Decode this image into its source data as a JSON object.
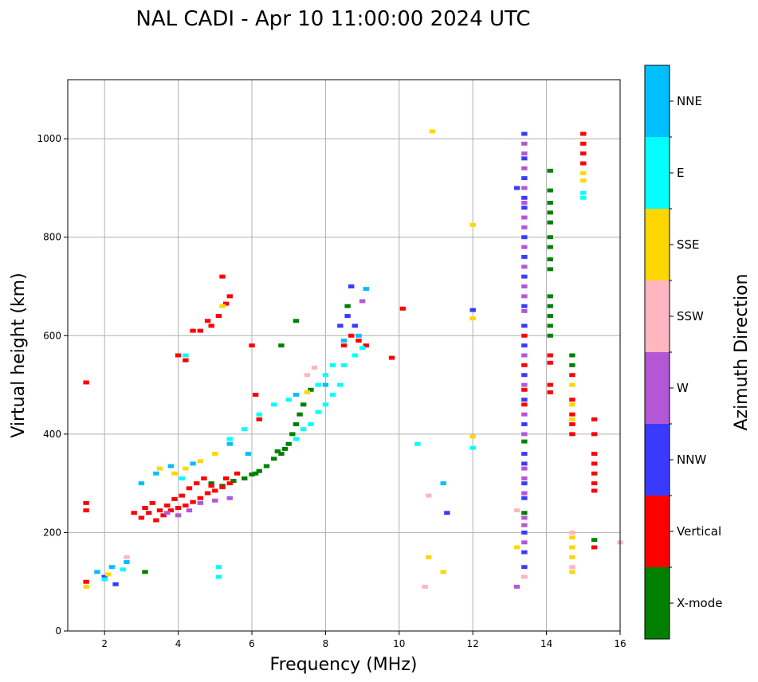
{
  "chart_data": {
    "type": "scatter",
    "title": "NAL CADI - Apr 10 11:00:00 2024 UTC",
    "xlabel": "Frequency (MHz)",
    "ylabel": "Virtual height (km)",
    "xlim": [
      1,
      16
    ],
    "ylim": [
      0,
      1120
    ],
    "xticks": [
      2,
      4,
      6,
      8,
      10,
      12,
      14,
      16
    ],
    "yticks": [
      0,
      200,
      400,
      600,
      800,
      1000
    ],
    "grid": true,
    "colorbar": {
      "label": "Azimuth Direction",
      "categories": [
        {
          "name": "X-mode",
          "color": "#008000"
        },
        {
          "name": "Vertical",
          "color": "#ff0000"
        },
        {
          "name": "NNW",
          "color": "#3a3aff"
        },
        {
          "name": "W",
          "color": "#b457d6"
        },
        {
          "name": "SSW",
          "color": "#ffb6c1"
        },
        {
          "name": "SSE",
          "color": "#ffd700"
        },
        {
          "name": "E",
          "color": "#00ffff"
        },
        {
          "name": "NNE",
          "color": "#00bfff"
        }
      ]
    },
    "series": [
      {
        "name": "X-mode",
        "points": [
          [
            4.9,
            300
          ],
          [
            5.2,
            295
          ],
          [
            5.5,
            305
          ],
          [
            5.8,
            310
          ],
          [
            6.0,
            318
          ],
          [
            6.2,
            325
          ],
          [
            6.4,
            335
          ],
          [
            6.6,
            350
          ],
          [
            6.8,
            360
          ],
          [
            7.0,
            380
          ],
          [
            7.2,
            420
          ],
          [
            7.4,
            460
          ],
          [
            7.6,
            490
          ],
          [
            6.1,
            320
          ],
          [
            6.7,
            365
          ],
          [
            6.9,
            370
          ],
          [
            7.1,
            400
          ],
          [
            7.3,
            440
          ],
          [
            6.8,
            580
          ],
          [
            7.2,
            630
          ],
          [
            8.6,
            660
          ],
          [
            3.1,
            120
          ],
          [
            14.1,
            935
          ],
          [
            14.1,
            895
          ],
          [
            14.1,
            870
          ],
          [
            14.1,
            850
          ],
          [
            14.1,
            830
          ],
          [
            14.1,
            800
          ],
          [
            14.1,
            780
          ],
          [
            14.1,
            755
          ],
          [
            14.1,
            735
          ],
          [
            14.1,
            680
          ],
          [
            14.1,
            660
          ],
          [
            14.1,
            640
          ],
          [
            14.1,
            620
          ],
          [
            14.1,
            600
          ],
          [
            13.4,
            385
          ],
          [
            13.4,
            240
          ],
          [
            14.7,
            560
          ],
          [
            14.7,
            540
          ],
          [
            15.3,
            185
          ]
        ]
      },
      {
        "name": "Vertical",
        "points": [
          [
            1.5,
            100
          ],
          [
            1.5,
            505
          ],
          [
            1.5,
            260
          ],
          [
            1.5,
            245
          ],
          [
            2.8,
            240
          ],
          [
            3.0,
            230
          ],
          [
            3.2,
            240
          ],
          [
            3.4,
            225
          ],
          [
            3.6,
            235
          ],
          [
            3.8,
            245
          ],
          [
            4.0,
            250
          ],
          [
            4.2,
            255
          ],
          [
            4.4,
            262
          ],
          [
            4.6,
            270
          ],
          [
            4.8,
            280
          ],
          [
            5.0,
            285
          ],
          [
            5.2,
            292
          ],
          [
            5.4,
            300
          ],
          [
            3.1,
            250
          ],
          [
            3.3,
            260
          ],
          [
            3.5,
            245
          ],
          [
            3.7,
            255
          ],
          [
            3.9,
            268
          ],
          [
            4.1,
            275
          ],
          [
            4.3,
            290
          ],
          [
            4.5,
            300
          ],
          [
            4.7,
            310
          ],
          [
            4.9,
            295
          ],
          [
            5.3,
            310
          ],
          [
            5.6,
            320
          ],
          [
            6.1,
            480
          ],
          [
            6.2,
            430
          ],
          [
            4.0,
            560
          ],
          [
            4.2,
            550
          ],
          [
            4.4,
            610
          ],
          [
            4.6,
            610
          ],
          [
            4.8,
            630
          ],
          [
            4.9,
            620
          ],
          [
            5.1,
            640
          ],
          [
            5.3,
            665
          ],
          [
            5.4,
            680
          ],
          [
            5.2,
            720
          ],
          [
            6.0,
            580
          ],
          [
            8.5,
            580
          ],
          [
            8.7,
            600
          ],
          [
            8.9,
            590
          ],
          [
            9.1,
            580
          ],
          [
            10.1,
            655
          ],
          [
            9.8,
            555
          ],
          [
            14.1,
            560
          ],
          [
            14.1,
            545
          ],
          [
            14.1,
            500
          ],
          [
            14.1,
            485
          ],
          [
            13.4,
            600
          ],
          [
            13.4,
            540
          ],
          [
            13.4,
            490
          ],
          [
            13.4,
            460
          ],
          [
            14.7,
            520
          ],
          [
            14.7,
            470
          ],
          [
            14.7,
            440
          ],
          [
            14.7,
            420
          ],
          [
            14.7,
            400
          ],
          [
            15.0,
            1010
          ],
          [
            15.0,
            990
          ],
          [
            15.0,
            970
          ],
          [
            15.0,
            950
          ],
          [
            15.3,
            430
          ],
          [
            15.3,
            400
          ],
          [
            15.3,
            360
          ],
          [
            15.3,
            340
          ],
          [
            15.3,
            320
          ],
          [
            15.3,
            300
          ],
          [
            15.3,
            285
          ],
          [
            15.3,
            170
          ]
        ]
      },
      {
        "name": "NNW",
        "points": [
          [
            2.3,
            95
          ],
          [
            2.0,
            110
          ],
          [
            13.4,
            1010
          ],
          [
            13.4,
            960
          ],
          [
            13.4,
            920
          ],
          [
            13.2,
            900
          ],
          [
            13.4,
            880
          ],
          [
            13.4,
            860
          ],
          [
            13.4,
            800
          ],
          [
            13.4,
            760
          ],
          [
            13.4,
            720
          ],
          [
            13.4,
            660
          ],
          [
            13.4,
            620
          ],
          [
            13.4,
            580
          ],
          [
            13.4,
            520
          ],
          [
            13.4,
            470
          ],
          [
            13.4,
            420
          ],
          [
            13.4,
            360
          ],
          [
            13.4,
            340
          ],
          [
            13.4,
            300
          ],
          [
            13.4,
            270
          ],
          [
            13.4,
            200
          ],
          [
            13.4,
            160
          ],
          [
            13.4,
            130
          ],
          [
            8.7,
            700
          ],
          [
            8.4,
            620
          ],
          [
            8.6,
            640
          ],
          [
            8.8,
            620
          ],
          [
            11.3,
            240
          ],
          [
            12.0,
            652
          ]
        ]
      },
      {
        "name": "W",
        "points": [
          [
            3.7,
            240
          ],
          [
            4.0,
            235
          ],
          [
            4.3,
            245
          ],
          [
            4.6,
            260
          ],
          [
            5.0,
            265
          ],
          [
            5.4,
            270
          ],
          [
            13.4,
            990
          ],
          [
            13.4,
            970
          ],
          [
            13.4,
            940
          ],
          [
            13.4,
            900
          ],
          [
            13.4,
            870
          ],
          [
            13.4,
            840
          ],
          [
            13.4,
            820
          ],
          [
            13.4,
            780
          ],
          [
            13.4,
            740
          ],
          [
            13.4,
            700
          ],
          [
            13.4,
            680
          ],
          [
            13.4,
            650
          ],
          [
            13.4,
            560
          ],
          [
            13.4,
            500
          ],
          [
            13.4,
            440
          ],
          [
            13.4,
            400
          ],
          [
            13.4,
            330
          ],
          [
            13.4,
            310
          ],
          [
            13.4,
            280
          ],
          [
            13.4,
            230
          ],
          [
            13.4,
            215
          ],
          [
            13.4,
            180
          ],
          [
            13.4,
            110
          ],
          [
            13.2,
            90
          ],
          [
            9.0,
            670
          ]
        ]
      },
      {
        "name": "SSW",
        "points": [
          [
            7.5,
            520
          ],
          [
            7.7,
            535
          ],
          [
            10.8,
            275
          ],
          [
            10.7,
            90
          ],
          [
            13.4,
            110
          ],
          [
            14.7,
            200
          ],
          [
            14.7,
            130
          ],
          [
            16.0,
            180
          ],
          [
            2.6,
            150
          ],
          [
            13.2,
            245
          ]
        ]
      },
      {
        "name": "SSE",
        "points": [
          [
            1.5,
            90
          ],
          [
            2.1,
            115
          ],
          [
            3.5,
            330
          ],
          [
            3.9,
            320
          ],
          [
            4.2,
            330
          ],
          [
            4.6,
            345
          ],
          [
            5.0,
            360
          ],
          [
            7.5,
            485
          ],
          [
            5.2,
            660
          ],
          [
            12.0,
            825
          ],
          [
            12.0,
            635
          ],
          [
            12.0,
            395
          ],
          [
            10.9,
            1015
          ],
          [
            10.8,
            150
          ],
          [
            11.2,
            120
          ],
          [
            13.2,
            170
          ],
          [
            14.7,
            190
          ],
          [
            14.7,
            170
          ],
          [
            14.7,
            150
          ],
          [
            14.7,
            120
          ],
          [
            14.7,
            500
          ],
          [
            14.7,
            460
          ],
          [
            14.7,
            430
          ],
          [
            15.0,
            930
          ],
          [
            15.0,
            915
          ]
        ]
      },
      {
        "name": "E",
        "points": [
          [
            2.0,
            105
          ],
          [
            2.5,
            125
          ],
          [
            5.1,
            110
          ],
          [
            5.1,
            130
          ],
          [
            5.4,
            390
          ],
          [
            5.8,
            410
          ],
          [
            6.2,
            440
          ],
          [
            6.6,
            460
          ],
          [
            7.0,
            470
          ],
          [
            7.2,
            390
          ],
          [
            7.4,
            410
          ],
          [
            7.6,
            420
          ],
          [
            7.8,
            445
          ],
          [
            8.0,
            460
          ],
          [
            8.2,
            480
          ],
          [
            8.4,
            500
          ],
          [
            8.5,
            540
          ],
          [
            8.8,
            560
          ],
          [
            9.0,
            575
          ],
          [
            7.8,
            500
          ],
          [
            8.0,
            520
          ],
          [
            8.2,
            540
          ],
          [
            10.5,
            380
          ],
          [
            12.0,
            372
          ],
          [
            15.0,
            890
          ],
          [
            15.0,
            880
          ],
          [
            4.2,
            560
          ],
          [
            4.1,
            310
          ]
        ]
      },
      {
        "name": "NNE",
        "points": [
          [
            1.8,
            120
          ],
          [
            2.2,
            130
          ],
          [
            2.6,
            140
          ],
          [
            3.0,
            300
          ],
          [
            3.4,
            320
          ],
          [
            3.8,
            335
          ],
          [
            4.4,
            340
          ],
          [
            5.4,
            380
          ],
          [
            5.9,
            360
          ],
          [
            7.2,
            480
          ],
          [
            8.0,
            500
          ],
          [
            8.5,
            590
          ],
          [
            8.9,
            600
          ],
          [
            9.1,
            695
          ],
          [
            11.2,
            300
          ]
        ]
      }
    ]
  }
}
